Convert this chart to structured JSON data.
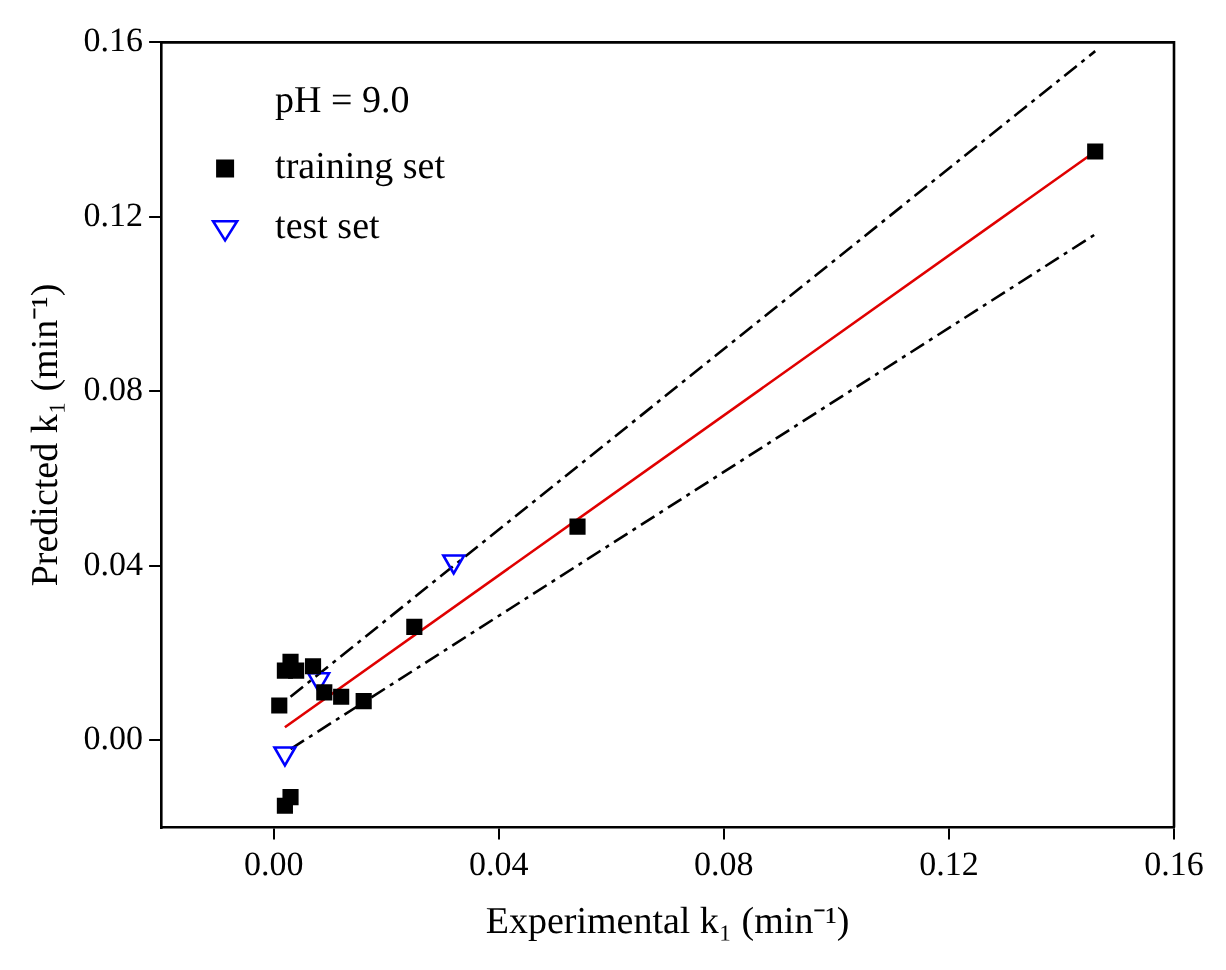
{
  "chart_data": {
    "type": "scatter",
    "xlabel": "Experimental k₁ (min⁻¹)",
    "ylabel": "Predicted k₁ (min⁻¹)",
    "legend_title": "pH = 9.0",
    "legend": "top left",
    "grid": false,
    "xlim": [
      -0.02,
      0.16
    ],
    "xticks": [
      {
        "value": 0,
        "label": "0.00"
      },
      {
        "value": 0.04,
        "label": "0.04"
      },
      {
        "value": 0.08,
        "label": "0.08"
      },
      {
        "value": 0.12,
        "label": "0.12"
      },
      {
        "value": 0.16,
        "label": "0.16"
      }
    ],
    "ylim": [
      -0.02,
      0.16
    ],
    "yticks": [
      {
        "value": 0,
        "label": "0.00"
      },
      {
        "value": 0.04,
        "label": "0.04"
      },
      {
        "value": 0.08,
        "label": "0.08"
      },
      {
        "value": 0.12,
        "label": "0.12"
      },
      {
        "value": 0.16,
        "label": "0.16"
      }
    ],
    "series": [
      {
        "name": "training set",
        "marker": "square",
        "color": "#000000",
        "x": [
          0.001,
          0.002,
          0.003,
          0.004,
          0.007,
          0.009,
          0.012,
          0.016,
          0.025,
          0.054,
          0.146,
          0.002,
          0.003
        ],
        "values": [
          0.008,
          0.016,
          0.018,
          0.016,
          0.017,
          0.011,
          0.01,
          0.009,
          0.026,
          0.049,
          0.135,
          -0.015,
          -0.013
        ]
      },
      {
        "name": "test set",
        "marker": "triangle",
        "color": "#0000ff",
        "x": [
          0.002,
          0.008,
          0.032
        ],
        "values": [
          -0.003,
          0.014,
          0.041
        ]
      },
      {
        "type": "line",
        "marker": "none",
        "line_style": "solid",
        "color": "#e00000",
        "x": [
          0.002,
          0.146
        ],
        "values": [
          0.003,
          0.135
        ]
      },
      {
        "type": "line",
        "marker": "none",
        "line_style": "dashed",
        "color": "#000000",
        "x": [
          0.003,
          0.146
        ],
        "values": [
          0.01,
          0.158
        ]
      },
      {
        "type": "line",
        "marker": "none",
        "line_style": "dashed",
        "color": "#000000",
        "x": [
          0.003,
          0.146
        ],
        "values": [
          -0.002,
          0.116
        ]
      }
    ]
  }
}
